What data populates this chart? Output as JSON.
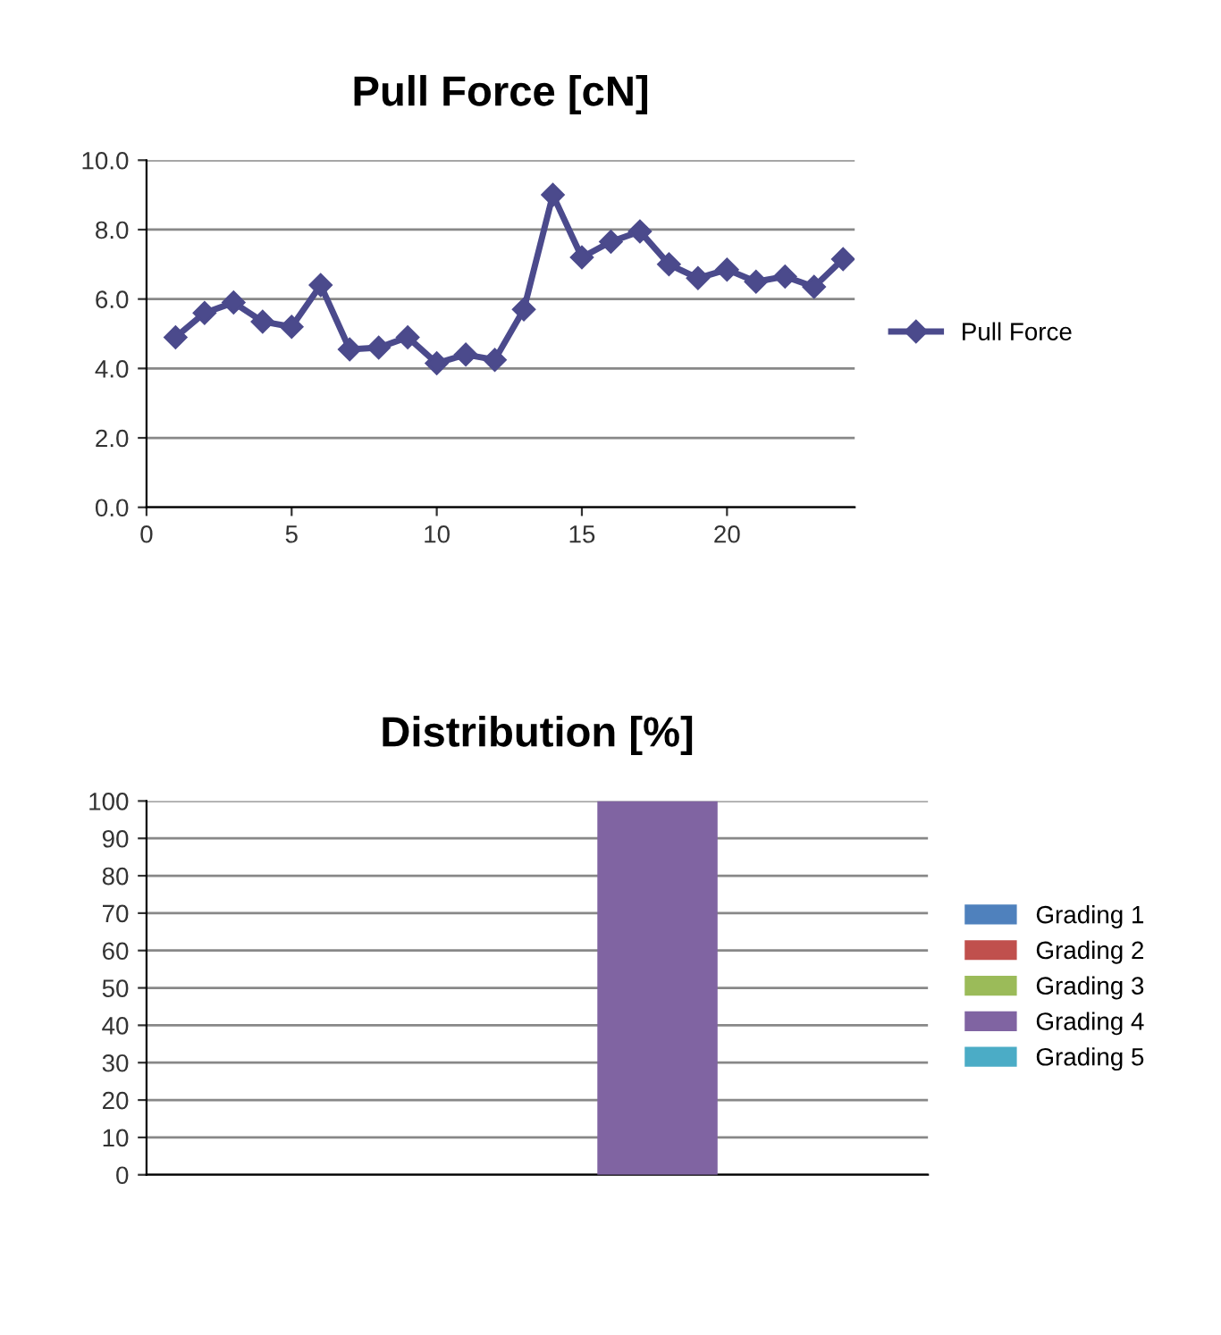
{
  "chart_data": [
    {
      "type": "line",
      "title": "Pull Force [cN]",
      "x": [
        1,
        2,
        3,
        4,
        5,
        6,
        7,
        8,
        9,
        10,
        11,
        12,
        13,
        14,
        15,
        16,
        17,
        18,
        19,
        20,
        21,
        22,
        23,
        24
      ],
      "series": [
        {
          "name": "Pull Force",
          "color": "#4b4a8c",
          "values": [
            4.9,
            5.6,
            5.9,
            5.35,
            5.2,
            6.4,
            4.55,
            4.6,
            4.9,
            4.15,
            4.4,
            4.25,
            5.7,
            9.0,
            7.2,
            7.65,
            7.95,
            7.0,
            6.6,
            6.85,
            6.5,
            6.65,
            6.35,
            7.15
          ]
        }
      ],
      "xlim": [
        0,
        24.4
      ],
      "xticks": [
        0,
        5,
        10,
        15,
        20
      ],
      "ylim": [
        0,
        10
      ],
      "yticks": [
        {
          "value": 0,
          "label": "0.0"
        },
        {
          "value": 2,
          "label": "2.0"
        },
        {
          "value": 4,
          "label": "4.0"
        },
        {
          "value": 6,
          "label": "6.0"
        },
        {
          "value": 8,
          "label": "8.0"
        },
        {
          "value": 10,
          "label": "10.0"
        }
      ],
      "grid": "y",
      "legend": "right",
      "marker": "diamond",
      "line_style": "solid"
    },
    {
      "type": "bar",
      "title": "Distribution [%]",
      "categories": [
        null
      ],
      "series": [
        {
          "name": "Grading 1",
          "color": "#4f81bd",
          "values": [
            0
          ]
        },
        {
          "name": "Grading 2",
          "color": "#c0504d",
          "values": [
            0
          ]
        },
        {
          "name": "Grading 3",
          "color": "#9bbb59",
          "values": [
            0
          ]
        },
        {
          "name": "Grading 4",
          "color": "#8064a2",
          "values": [
            100
          ]
        },
        {
          "name": "Grading 5",
          "color": "#4bacc6",
          "values": [
            0
          ]
        }
      ],
      "ylim": [
        0,
        100
      ],
      "yticks": [
        0,
        10,
        20,
        30,
        40,
        50,
        60,
        70,
        80,
        90,
        100
      ],
      "grid": "y",
      "legend": "right"
    }
  ]
}
